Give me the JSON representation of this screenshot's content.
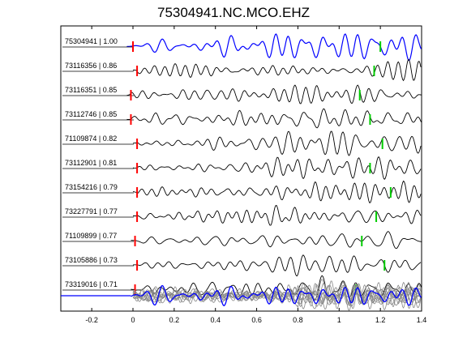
{
  "chart_data": {
    "type": "line",
    "title": "75304941.NC.MCO.EHZ",
    "xlim": [
      -0.35,
      1.4
    ],
    "xticks": [
      "-0.2",
      "0",
      "0.2",
      "0.4",
      "0.6",
      "0.8",
      "1",
      "1.2",
      "1.4"
    ],
    "xtick_values": [
      -0.2,
      0,
      0.2,
      0.4,
      0.6,
      0.8,
      1.0,
      1.2,
      1.4
    ],
    "grid": false,
    "series": [
      {
        "name": "75304941 | 1.00",
        "p_pick": 0.0,
        "s_pick": 1.2,
        "color": "#0000ff"
      },
      {
        "name": "73116356 | 0.86",
        "p_pick": 0.02,
        "s_pick": 1.17,
        "color": "#000000"
      },
      {
        "name": "73116351 | 0.85",
        "p_pick": -0.01,
        "s_pick": 1.1,
        "color": "#000000"
      },
      {
        "name": "73112746 | 0.85",
        "p_pick": -0.01,
        "s_pick": 1.15,
        "color": "#000000"
      },
      {
        "name": "71109874 | 0.82",
        "p_pick": 0.02,
        "s_pick": 1.21,
        "color": "#000000"
      },
      {
        "name": "73112901 | 0.81",
        "p_pick": 0.02,
        "s_pick": 1.15,
        "color": "#000000"
      },
      {
        "name": "73154216 | 0.79",
        "p_pick": 0.02,
        "s_pick": 1.25,
        "color": "#000000"
      },
      {
        "name": "73227791 | 0.77",
        "p_pick": 0.02,
        "s_pick": 1.18,
        "color": "#000000"
      },
      {
        "name": "71109899 | 0.77",
        "p_pick": 0.01,
        "s_pick": 1.11,
        "color": "#000000"
      },
      {
        "name": "73105886 | 0.73",
        "p_pick": 0.02,
        "s_pick": 1.22,
        "color": "#000000"
      },
      {
        "name": "73319016 | 0.71",
        "p_pick": 0.01,
        "s_pick": 1.08,
        "color": "#000000"
      }
    ],
    "stack_label": "",
    "p_pick_color": "#ff0000",
    "s_pick_color": "#00cc00"
  }
}
